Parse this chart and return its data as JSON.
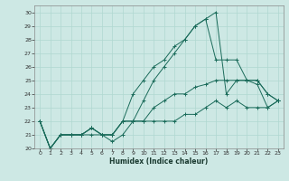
{
  "xlabel": "Humidex (Indice chaleur)",
  "ylabel": "",
  "bg_color": "#cde8e4",
  "line_color": "#1a6b5a",
  "grid_color": "#b0d8d0",
  "xlim": [
    -0.5,
    23.5
  ],
  "ylim": [
    20,
    30.5
  ],
  "yticks": [
    20,
    21,
    22,
    23,
    24,
    25,
    26,
    27,
    28,
    29,
    30
  ],
  "xticks": [
    0,
    1,
    2,
    3,
    4,
    5,
    6,
    7,
    8,
    9,
    10,
    11,
    12,
    13,
    14,
    15,
    16,
    17,
    18,
    19,
    20,
    21,
    22,
    23
  ],
  "series": [
    [
      22,
      20,
      21,
      21,
      21,
      21,
      21,
      20.5,
      21,
      22,
      22,
      23,
      23.5,
      24,
      24,
      24.5,
      24.7,
      25,
      25,
      25,
      25,
      24.7,
      23,
      23.5
    ],
    [
      22,
      20,
      21,
      21,
      21,
      21.5,
      21,
      21,
      22,
      24,
      25,
      26,
      26.5,
      27.5,
      28,
      29,
      29.5,
      30,
      24,
      25,
      25,
      25,
      24,
      23.5
    ],
    [
      22,
      20,
      21,
      21,
      21,
      21.5,
      21,
      21,
      22,
      22,
      23.5,
      25,
      26,
      27,
      28,
      29,
      29.5,
      26.5,
      26.5,
      26.5,
      25,
      25,
      24,
      23.5
    ],
    [
      22,
      20,
      21,
      21,
      21,
      21.5,
      21,
      21,
      22,
      22,
      22,
      22,
      22,
      22,
      22.5,
      22.5,
      23,
      23.5,
      23,
      23.5,
      23,
      23,
      23,
      23.5
    ]
  ]
}
